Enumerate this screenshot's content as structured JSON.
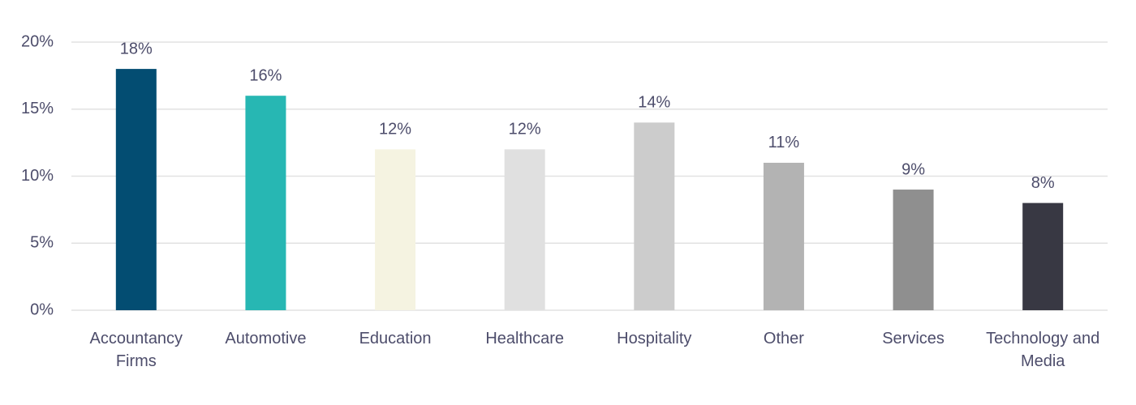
{
  "chart_data": {
    "type": "bar",
    "categories": [
      "Accountancy Firms",
      "Automotive",
      "Education",
      "Healthcare",
      "Hospitality",
      "Other",
      "Services",
      "Technology and Media"
    ],
    "values": [
      18,
      16,
      12,
      12,
      14,
      11,
      9,
      8
    ],
    "value_labels": [
      "18%",
      "16%",
      "12%",
      "12%",
      "14%",
      "11%",
      "9%",
      "8%"
    ],
    "colors": [
      "#034d72",
      "#27b7b3",
      "#f5f3e1",
      "#e0e0e0",
      "#cccccc",
      "#b3b3b3",
      "#8f8f8f",
      "#383843"
    ],
    "ylim": [
      0,
      20
    ],
    "yticks": [
      {
        "value": 0,
        "label": "0%"
      },
      {
        "value": 5,
        "label": "5%"
      },
      {
        "value": 10,
        "label": "10%"
      },
      {
        "value": 15,
        "label": "15%"
      },
      {
        "value": 20,
        "label": "20%"
      }
    ],
    "grid": true
  }
}
